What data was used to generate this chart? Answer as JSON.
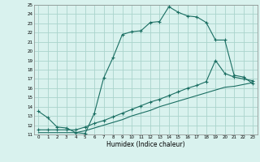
{
  "xlabel": "Humidex (Indice chaleur)",
  "xlim": [
    -0.5,
    23.5
  ],
  "ylim": [
    11,
    25
  ],
  "xticks": [
    0,
    1,
    2,
    3,
    4,
    5,
    6,
    7,
    8,
    9,
    10,
    11,
    12,
    13,
    14,
    15,
    16,
    17,
    18,
    19,
    20,
    21,
    22,
    23
  ],
  "yticks": [
    11,
    12,
    13,
    14,
    15,
    16,
    17,
    18,
    19,
    20,
    21,
    22,
    23,
    24,
    25
  ],
  "bg_color": "#d9f2ee",
  "grid_color": "#aad4cc",
  "line_color": "#1a6e62",
  "curve1_x": [
    0,
    1,
    2,
    3,
    4,
    5,
    6,
    7,
    8,
    9,
    10,
    11,
    12,
    13,
    14,
    15,
    16,
    17,
    18,
    19,
    20,
    21,
    22,
    23
  ],
  "curve1_y": [
    13.5,
    12.8,
    11.8,
    11.7,
    11.2,
    11.1,
    13.3,
    17.1,
    19.3,
    21.8,
    22.1,
    22.2,
    23.1,
    23.2,
    24.8,
    24.2,
    23.8,
    23.7,
    23.1,
    21.2,
    21.2,
    17.4,
    17.2,
    16.5
  ],
  "curve2_x": [
    0,
    1,
    2,
    3,
    4,
    5,
    6,
    7,
    8,
    9,
    10,
    11,
    12,
    13,
    14,
    15,
    16,
    17,
    18,
    19,
    20,
    21,
    22,
    23
  ],
  "curve2_y": [
    11.5,
    11.5,
    11.5,
    11.5,
    11.5,
    11.8,
    12.2,
    12.5,
    12.9,
    13.3,
    13.7,
    14.1,
    14.5,
    14.8,
    15.2,
    15.6,
    16.0,
    16.3,
    16.7,
    19.0,
    17.6,
    17.2,
    17.0,
    16.8
  ],
  "curve3_x": [
    0,
    1,
    2,
    3,
    4,
    5,
    6,
    7,
    8,
    9,
    10,
    11,
    12,
    13,
    14,
    15,
    16,
    17,
    18,
    19,
    20,
    21,
    22,
    23
  ],
  "curve3_y": [
    11.2,
    11.2,
    11.2,
    11.2,
    11.2,
    11.4,
    11.7,
    12.0,
    12.3,
    12.6,
    13.0,
    13.3,
    13.6,
    14.0,
    14.3,
    14.6,
    14.9,
    15.2,
    15.5,
    15.8,
    16.1,
    16.2,
    16.4,
    16.6
  ],
  "curve1_markers": [
    0,
    1,
    2,
    3,
    4,
    5,
    6,
    7,
    8,
    9,
    10,
    11,
    12,
    13,
    14,
    15,
    16,
    17,
    18,
    19,
    20,
    21,
    22,
    23
  ],
  "curve2_markers": [
    0,
    1,
    2,
    3,
    4,
    5,
    6,
    7,
    8,
    9,
    10,
    11,
    12,
    13,
    14,
    15,
    16,
    17,
    18,
    19,
    20,
    21,
    22,
    23
  ]
}
